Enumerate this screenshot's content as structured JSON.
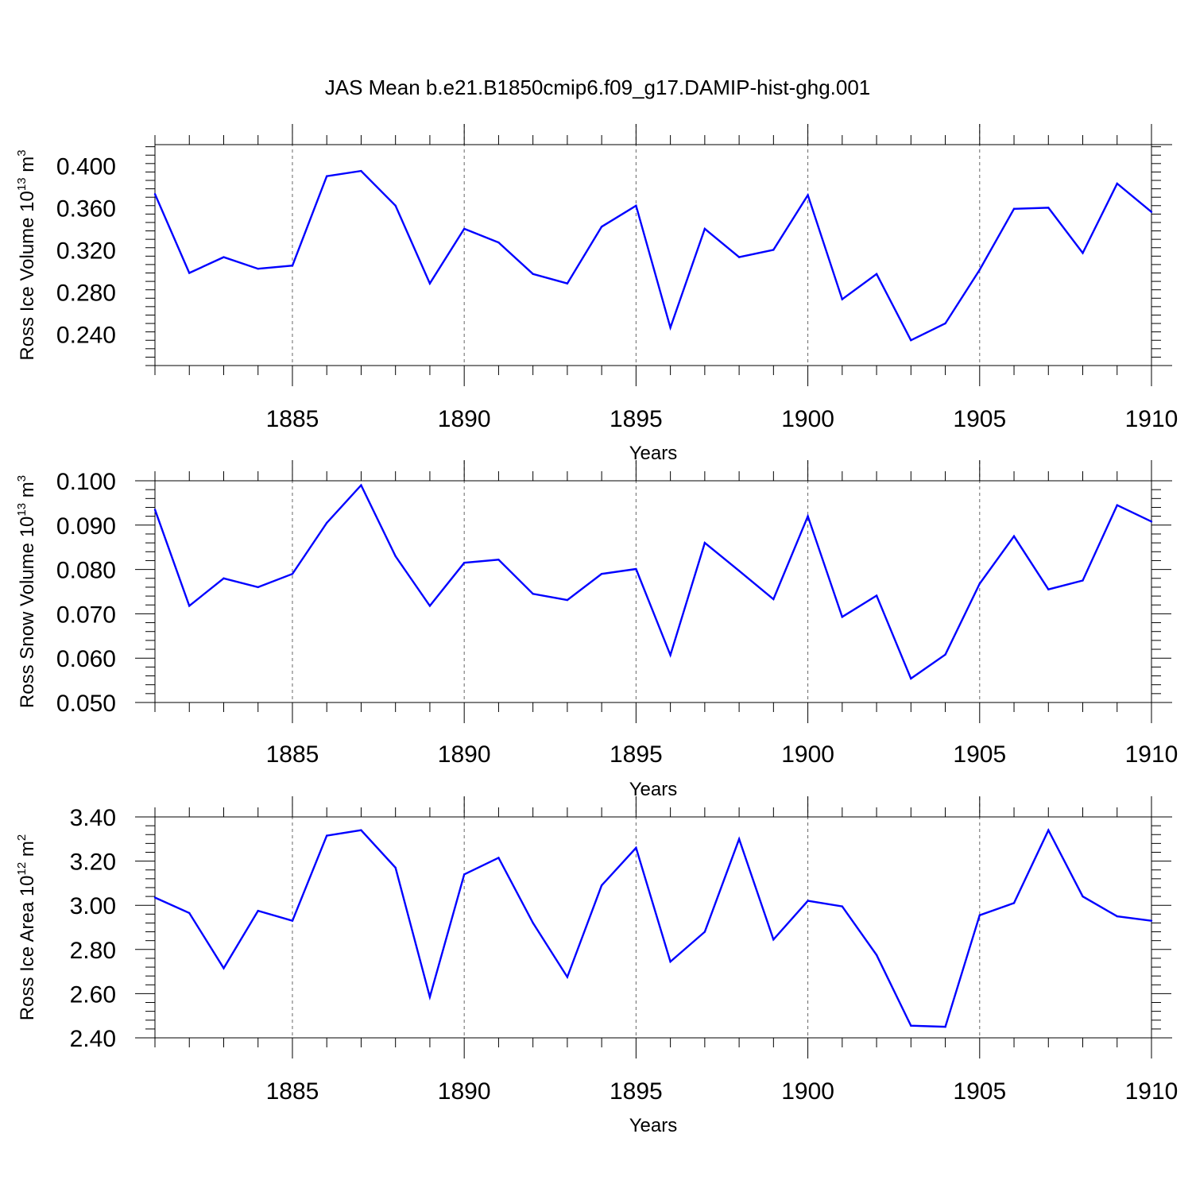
{
  "chart_data": {
    "title": "JAS Mean b.e21.B1850cmip6.f09_g17.DAMIP-hist-ghg.001",
    "line_color": "#0000ff",
    "x": [
      1881,
      1882,
      1883,
      1884,
      1885,
      1886,
      1887,
      1888,
      1889,
      1890,
      1891,
      1892,
      1893,
      1894,
      1895,
      1896,
      1897,
      1898,
      1899,
      1900,
      1901,
      1902,
      1903,
      1904,
      1905,
      1906,
      1907,
      1908,
      1909,
      1910
    ],
    "xlim": [
      1881,
      1910
    ],
    "xticks": [
      1885,
      1890,
      1895,
      1900,
      1905,
      1910
    ],
    "xlabel": "Years",
    "panels": [
      {
        "type": "line",
        "ylabel_main": "Ross Ice Volume 10",
        "ylabel_exp": "13",
        "ylabel_unit": "m",
        "ylabel_unit_exp": "3",
        "ylim": [
          0.21,
          0.42
        ],
        "yticks": [
          "0.240",
          "0.280",
          "0.320",
          "0.360",
          "0.400"
        ],
        "values": [
          0.373,
          0.298,
          0.313,
          0.302,
          0.305,
          0.39,
          0.395,
          0.362,
          0.288,
          0.34,
          0.327,
          0.297,
          0.288,
          0.342,
          0.362,
          0.246,
          0.34,
          0.313,
          0.32,
          0.372,
          0.273,
          0.297,
          0.234,
          0.25,
          0.301,
          0.359,
          0.36,
          0.317,
          0.383,
          0.356
        ]
      },
      {
        "type": "line",
        "ylabel_main": "Ross Snow Volume 10",
        "ylabel_exp": "13",
        "ylabel_unit": "m",
        "ylabel_unit_exp": "3",
        "ylim": [
          0.05,
          0.1
        ],
        "yticks": [
          "0.050",
          "0.060",
          "0.070",
          "0.080",
          "0.090",
          "0.100"
        ],
        "values": [
          0.0935,
          0.0718,
          0.078,
          0.076,
          0.079,
          0.0905,
          0.099,
          0.083,
          0.0718,
          0.0815,
          0.0822,
          0.0745,
          0.0731,
          0.079,
          0.0801,
          0.0607,
          0.086,
          0.0797,
          0.0733,
          0.092,
          0.0693,
          0.0741,
          0.0554,
          0.0608,
          0.0768,
          0.0875,
          0.0755,
          0.0775,
          0.0945,
          0.0908
        ]
      },
      {
        "type": "line",
        "ylabel_main": "Ross Ice Area 10",
        "ylabel_exp": "12",
        "ylabel_unit": "m",
        "ylabel_unit_exp": "2",
        "ylim": [
          2.4,
          3.4
        ],
        "yticks": [
          "2.40",
          "2.60",
          "2.80",
          "3.00",
          "3.20",
          "3.40"
        ],
        "values": [
          3.035,
          2.965,
          2.715,
          2.975,
          2.93,
          3.315,
          3.34,
          3.17,
          2.585,
          3.14,
          3.215,
          2.92,
          2.675,
          3.09,
          3.26,
          2.745,
          2.88,
          3.3,
          2.845,
          3.02,
          2.995,
          2.775,
          2.455,
          2.45,
          2.955,
          3.01,
          3.34,
          3.04,
          2.95,
          2.93
        ]
      }
    ]
  }
}
